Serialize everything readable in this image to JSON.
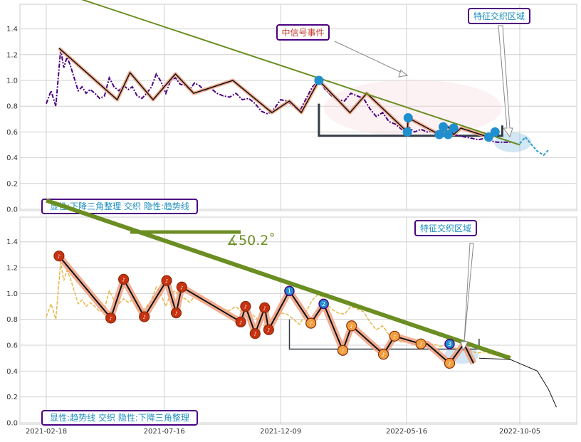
{
  "colors": {
    "grid": "#d0d0d0",
    "price_top": "#4b0082",
    "price_bottom": "#e8b84a",
    "trend": "#6b8e23",
    "zigzag_glow": "#f0a080",
    "zigzag": "#111111",
    "triangle": "#333c46",
    "event_text": "#c0392b",
    "zone_text": "#1f8fc0",
    "label_border": "#4b0082",
    "marker_blue": "#1f8fd0",
    "marker_red": "#c83210",
    "marker_orange": "#f0a040"
  },
  "top_panel": {
    "event_label": "中信号事件",
    "zone_label": "特征交织区域",
    "caption": "显性:下降三角整理 交织 隐性:趋势线"
  },
  "bottom_panel": {
    "angle_label": "∡50.2˚",
    "zone_label": "特征交织区域",
    "caption": "显性:趋势线 交织 隐性:下降三角整理",
    "circle_numbers": [
      "1",
      "2",
      "3"
    ]
  },
  "chart_data": [
    {
      "type": "line",
      "panel": "top",
      "x_tick_labels": [],
      "y_ticks": [
        "0.0",
        "0.2",
        "0.4",
        "0.6",
        "0.8",
        "1.0",
        "1.2",
        "1.4"
      ],
      "ylim": [
        0,
        1.58
      ],
      "x_range_dates": [
        "2021-02-18",
        "2022-12-20"
      ],
      "grid": true,
      "series": [
        {
          "role": "price",
          "x": [
            "2021-02-18",
            "2021-02-24",
            "2021-03-02",
            "2021-03-08",
            "2021-03-12",
            "2021-03-16",
            "2021-03-20",
            "2021-03-25",
            "2021-03-30",
            "2021-04-04",
            "2021-04-09",
            "2021-04-14",
            "2021-04-20",
            "2021-04-26",
            "2021-05-02",
            "2021-05-08",
            "2021-05-14",
            "2021-05-20",
            "2021-05-26",
            "2021-06-01",
            "2021-06-06",
            "2021-06-12",
            "2021-06-18",
            "2021-06-24",
            "2021-06-30",
            "2021-07-06",
            "2021-07-12",
            "2021-07-18",
            "2021-07-24",
            "2021-07-30",
            "2021-08-05",
            "2021-08-11",
            "2021-08-17",
            "2021-08-23",
            "2021-08-29",
            "2021-09-05",
            "2021-09-12",
            "2021-09-20",
            "2021-09-28",
            "2021-10-06",
            "2021-10-14",
            "2021-10-22",
            "2021-10-30",
            "2021-11-07",
            "2021-11-15",
            "2021-11-23",
            "2021-12-01",
            "2021-12-09",
            "2021-12-17",
            "2021-12-25",
            "2022-01-02",
            "2022-01-10",
            "2022-01-18",
            "2022-01-26",
            "2022-02-03",
            "2022-02-11",
            "2022-02-19",
            "2022-02-27",
            "2022-03-07",
            "2022-03-15",
            "2022-03-23",
            "2022-03-31",
            "2022-04-08",
            "2022-04-16",
            "2022-04-24",
            "2022-05-02",
            "2022-05-10",
            "2022-05-18",
            "2022-05-26",
            "2022-06-03",
            "2022-06-11",
            "2022-06-19",
            "2022-06-27",
            "2022-07-05",
            "2022-07-13",
            "2022-07-21",
            "2022-07-29",
            "2022-08-06",
            "2022-08-14",
            "2022-08-22",
            "2022-08-30",
            "2022-09-07",
            "2022-09-15",
            "2022-09-23"
          ],
          "y": [
            0.82,
            0.92,
            0.8,
            1.24,
            1.1,
            1.18,
            1.12,
            1.02,
            0.92,
            0.95,
            0.9,
            0.93,
            0.9,
            0.86,
            0.88,
            1.02,
            0.95,
            0.92,
            0.96,
            0.93,
            0.95,
            0.88,
            0.86,
            0.9,
            0.95,
            1.05,
            0.99,
            0.9,
            1.0,
            1.02,
            0.97,
            0.96,
            0.93,
            0.98,
            0.96,
            0.92,
            0.94,
            0.9,
            0.88,
            0.87,
            0.9,
            0.85,
            0.86,
            0.82,
            0.76,
            0.74,
            0.78,
            0.85,
            0.84,
            0.8,
            0.76,
            0.86,
            0.95,
            1.0,
            0.93,
            0.88,
            0.85,
            0.84,
            0.9,
            0.88,
            0.86,
            0.78,
            0.72,
            0.75,
            0.68,
            0.66,
            0.62,
            0.64,
            0.6,
            0.62,
            0.6,
            0.61,
            0.59,
            0.6,
            0.58,
            0.57,
            0.56,
            0.55,
            0.54,
            0.55,
            0.53,
            0.52,
            0.52,
            0.52
          ]
        },
        {
          "role": "zigzag",
          "x": [
            "2021-03-06",
            "2021-05-18",
            "2021-06-03",
            "2021-07-02",
            "2021-07-30",
            "2021-08-22",
            "2021-10-10",
            "2021-11-28",
            "2021-12-20",
            "2022-01-04",
            "2022-01-26",
            "2022-03-06",
            "2022-03-27",
            "2022-05-17",
            "2022-05-18",
            "2022-06-26",
            "2022-07-07",
            "2022-07-14",
            "2022-07-23",
            "2022-08-27",
            "2022-09-04"
          ],
          "y": [
            1.25,
            0.85,
            1.06,
            0.85,
            1.05,
            0.9,
            1.0,
            0.75,
            0.84,
            0.75,
            1.0,
            0.75,
            0.9,
            0.6,
            0.71,
            0.58,
            0.64,
            0.58,
            0.63,
            0.56,
            0.6
          ]
        },
        {
          "role": "trendline",
          "x": [
            "2021-02-18",
            "2022-10-05"
          ],
          "y": [
            1.72,
            0.5
          ]
        }
      ],
      "markers": {
        "x": [
          "2022-01-26",
          "2022-05-17",
          "2022-05-18",
          "2022-06-26",
          "2022-07-01",
          "2022-07-07",
          "2022-07-14",
          "2022-08-27",
          "2022-09-04"
        ],
        "y": [
          1.0,
          0.6,
          0.71,
          0.58,
          0.64,
          0.58,
          0.63,
          0.56,
          0.6
        ]
      },
      "triangle": {
        "x": [
          "2022-01-26",
          "2022-01-26",
          "2022-09-13",
          "2022-09-13"
        ],
        "y": [
          0.82,
          0.57,
          0.57,
          0.65
        ]
      },
      "tail_projection": {
        "x": [
          "2022-10-05",
          "2022-10-12",
          "2022-10-20",
          "2022-10-27",
          "2022-11-04",
          "2022-11-10"
        ],
        "y": [
          0.51,
          0.56,
          0.5,
          0.45,
          0.42,
          0.46
        ]
      }
    },
    {
      "type": "line",
      "panel": "bottom",
      "x_tick_labels": [
        "2021-02-18",
        "2021-07-16",
        "2021-12-09",
        "2022-05-16",
        "2022-10-05"
      ],
      "y_ticks": [
        "0.0",
        "0.2",
        "0.4",
        "0.6",
        "0.8",
        "1.0",
        "1.2",
        "1.4"
      ],
      "ylim": [
        0,
        1.58
      ],
      "x_range_dates": [
        "2021-02-18",
        "2022-12-20"
      ],
      "grid": true,
      "series": [
        {
          "role": "price",
          "x": [
            "2021-02-18",
            "2021-02-24",
            "2021-03-02",
            "2021-03-08",
            "2021-03-12",
            "2021-03-16",
            "2021-03-20",
            "2021-03-25",
            "2021-03-30",
            "2021-04-04",
            "2021-04-09",
            "2021-04-14",
            "2021-04-20",
            "2021-04-26",
            "2021-05-02",
            "2021-05-08",
            "2021-05-14",
            "2021-05-20",
            "2021-05-26",
            "2021-06-01",
            "2021-06-06",
            "2021-06-12",
            "2021-06-18",
            "2021-06-24",
            "2021-06-30",
            "2021-07-06",
            "2021-07-12",
            "2021-07-18",
            "2021-07-24",
            "2021-07-30",
            "2021-08-05",
            "2021-08-11",
            "2021-08-17",
            "2021-08-23",
            "2021-08-29",
            "2021-09-05",
            "2021-09-12",
            "2021-09-20",
            "2021-09-28",
            "2021-10-06",
            "2021-10-14",
            "2021-10-22",
            "2021-10-30",
            "2021-11-07",
            "2021-11-15",
            "2021-11-23",
            "2021-12-01",
            "2021-12-09",
            "2021-12-17",
            "2021-12-25",
            "2022-01-02",
            "2022-01-10",
            "2022-01-18",
            "2022-01-26",
            "2022-02-03",
            "2022-02-11",
            "2022-02-19",
            "2022-02-27",
            "2022-03-07",
            "2022-03-15",
            "2022-03-23",
            "2022-03-31",
            "2022-04-08",
            "2022-04-16",
            "2022-04-24",
            "2022-05-02",
            "2022-05-10",
            "2022-05-18",
            "2022-05-26",
            "2022-06-03",
            "2022-06-11",
            "2022-06-19",
            "2022-06-27",
            "2022-07-05",
            "2022-07-13",
            "2022-07-21",
            "2022-07-29",
            "2022-08-06",
            "2022-08-14",
            "2022-08-22",
            "2022-08-30",
            "2022-09-07",
            "2022-09-15",
            "2022-09-23"
          ],
          "y": [
            0.82,
            0.92,
            0.8,
            1.24,
            1.1,
            1.18,
            1.12,
            1.02,
            0.92,
            0.95,
            0.9,
            0.93,
            0.9,
            0.86,
            0.88,
            1.02,
            0.95,
            0.92,
            0.96,
            0.93,
            0.95,
            0.88,
            0.86,
            0.9,
            0.95,
            1.05,
            0.99,
            0.9,
            1.0,
            1.02,
            0.97,
            0.96,
            0.93,
            0.98,
            0.96,
            0.92,
            0.94,
            0.9,
            0.88,
            0.87,
            0.9,
            0.85,
            0.86,
            0.82,
            0.76,
            0.74,
            0.78,
            0.85,
            0.84,
            0.8,
            0.76,
            0.86,
            0.95,
            1.0,
            0.93,
            0.88,
            0.85,
            0.84,
            0.9,
            0.88,
            0.86,
            0.78,
            0.72,
            0.75,
            0.68,
            0.66,
            0.62,
            0.64,
            0.6,
            0.62,
            0.6,
            0.61,
            0.59,
            0.6,
            0.58,
            0.57,
            0.56,
            0.55,
            0.54,
            0.55,
            0.53,
            0.52,
            0.52,
            0.52
          ]
        },
        {
          "role": "zigzag",
          "x": [
            "2021-03-06",
            "2021-05-10",
            "2021-05-26",
            "2021-06-21",
            "2021-07-19",
            "2021-07-31",
            "2021-08-07",
            "2021-10-20",
            "2021-10-26",
            "2021-11-07",
            "2021-11-19",
            "2021-11-24",
            "2021-12-20",
            "2022-01-16",
            "2022-02-01",
            "2022-02-25",
            "2022-03-08",
            "2022-04-17",
            "2022-05-01",
            "2022-06-03",
            "2022-06-11",
            "2022-07-09",
            "2022-07-27",
            "2022-08-08"
          ],
          "y": [
            1.29,
            0.81,
            1.11,
            0.82,
            1.1,
            0.85,
            1.05,
            0.78,
            0.9,
            0.69,
            0.89,
            0.72,
            1.02,
            0.77,
            0.92,
            0.56,
            0.75,
            0.53,
            0.67,
            0.61,
            0.61,
            0.46,
            0.61,
            0.46
          ]
        },
        {
          "role": "trendline",
          "x": [
            "2021-02-18",
            "2022-09-23"
          ],
          "y": [
            1.72,
            0.5
          ]
        }
      ],
      "markers": {
        "x": [
          "2021-03-06",
          "2021-05-10",
          "2021-05-26",
          "2021-06-21",
          "2021-07-19",
          "2021-07-31",
          "2021-08-07",
          "2021-10-20",
          "2021-10-26",
          "2021-11-07",
          "2021-11-19",
          "2021-11-24",
          "2022-01-16",
          "2022-02-25",
          "2022-03-08",
          "2022-04-17",
          "2022-05-01",
          "2022-06-03",
          "2022-07-09"
        ],
        "y": [
          1.29,
          0.81,
          1.11,
          0.82,
          1.1,
          0.85,
          1.05,
          0.78,
          0.9,
          0.69,
          0.89,
          0.72,
          0.77,
          0.56,
          0.75,
          0.53,
          0.67,
          0.61,
          0.46
        ]
      },
      "numbered_markers": {
        "x": [
          "2021-12-20",
          "2022-02-01",
          "2022-07-09"
        ],
        "y": [
          1.02,
          0.92,
          0.61
        ]
      },
      "triangle": {
        "x": [
          "2021-12-20",
          "2021-12-20",
          "2022-08-15",
          "2022-08-15"
        ],
        "y": [
          0.8,
          0.57,
          0.57,
          0.65
        ]
      },
      "tail_projection": {
        "x": [
          "2022-08-15",
          "2022-09-23",
          "2022-10-27",
          "2022-11-10",
          "2022-11-20"
        ],
        "y": [
          0.5,
          0.49,
          0.4,
          0.26,
          0.12
        ]
      }
    }
  ]
}
